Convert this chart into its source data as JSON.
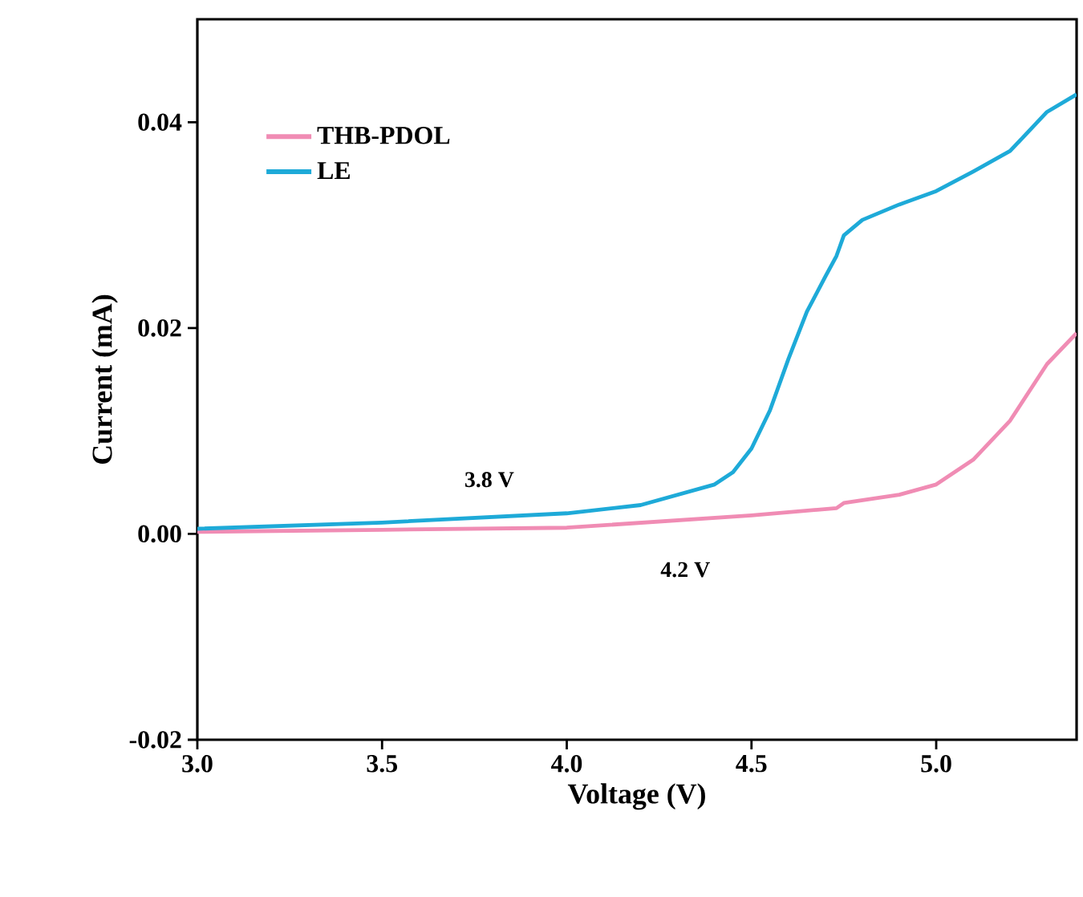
{
  "chart_data": {
    "type": "line",
    "xlabel": "Voltage (V)",
    "ylabel": "Current (mA)",
    "xlim": [
      3.0,
      5.38
    ],
    "ylim": [
      -0.02,
      0.05
    ],
    "xticks": [
      {
        "value": 3.0,
        "label": "3.0"
      },
      {
        "value": 3.5,
        "label": "3.5"
      },
      {
        "value": 4.0,
        "label": "4.0"
      },
      {
        "value": 4.5,
        "label": "4.5"
      },
      {
        "value": 5.0,
        "label": "5.0"
      }
    ],
    "yticks": [
      {
        "value": -0.02,
        "label": "-0.02"
      },
      {
        "value": 0.0,
        "label": "0.00"
      },
      {
        "value": 0.02,
        "label": "0.02"
      },
      {
        "value": 0.04,
        "label": "0.04"
      }
    ],
    "legend": "top left",
    "grid": false,
    "marker": "none",
    "line_style": "solid",
    "series": [
      {
        "name": "THB-PDOL",
        "color": "#f08cb4",
        "x": [
          3.0,
          3.5,
          4.0,
          4.5,
          4.73,
          4.75,
          4.9,
          5.0,
          5.1,
          5.2,
          5.3,
          5.38
        ],
        "values": [
          0.0002,
          0.0004,
          0.0006,
          0.0018,
          0.0025,
          0.003,
          0.0038,
          0.0048,
          0.0072,
          0.011,
          0.0165,
          0.0195
        ]
      },
      {
        "name": "LE",
        "color": "#1eaad8",
        "x": [
          3.0,
          3.5,
          4.0,
          4.2,
          4.4,
          4.45,
          4.5,
          4.55,
          4.6,
          4.65,
          4.7,
          4.73,
          4.74,
          4.75,
          4.8,
          4.9,
          5.0,
          5.1,
          5.2,
          5.3,
          5.38
        ],
        "values": [
          0.0005,
          0.0011,
          0.002,
          0.0028,
          0.0048,
          0.006,
          0.0083,
          0.012,
          0.017,
          0.0216,
          0.025,
          0.027,
          0.028,
          0.029,
          0.0305,
          0.032,
          0.0333,
          0.0352,
          0.0372,
          0.041,
          0.0427
        ]
      }
    ],
    "annotations": [
      "3.8 V",
      "4.2 V"
    ]
  }
}
